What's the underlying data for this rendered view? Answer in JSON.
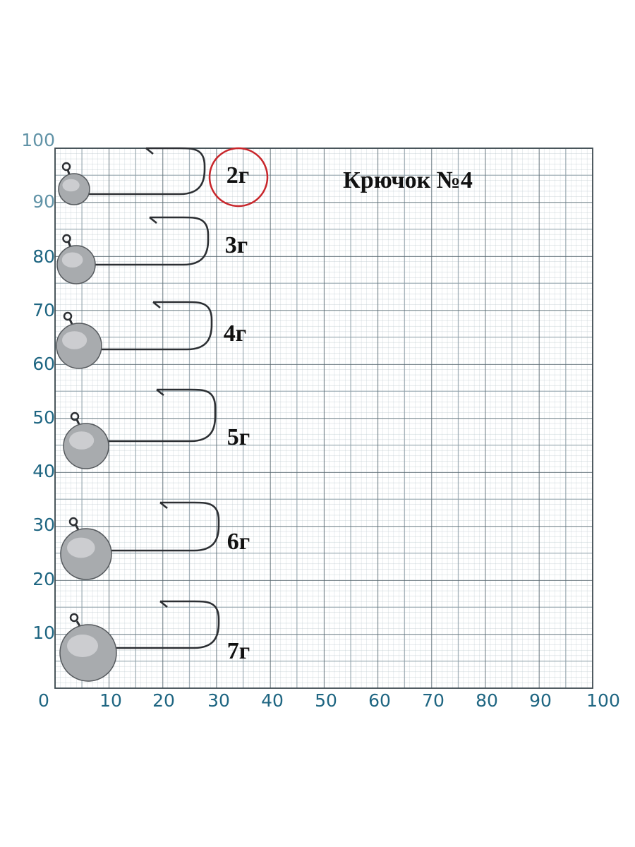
{
  "title": "Крючок №4",
  "weights": [
    "2г",
    "3г",
    "4г",
    "5г",
    "6г",
    "7г"
  ],
  "x_axis": [
    "0",
    "10",
    "20",
    "30",
    "40",
    "50",
    "60",
    "70",
    "80",
    "90",
    "100"
  ],
  "y_axis": [
    "10",
    "20",
    "30",
    "40",
    "50",
    "60",
    "70",
    "80",
    "90",
    "100"
  ]
}
